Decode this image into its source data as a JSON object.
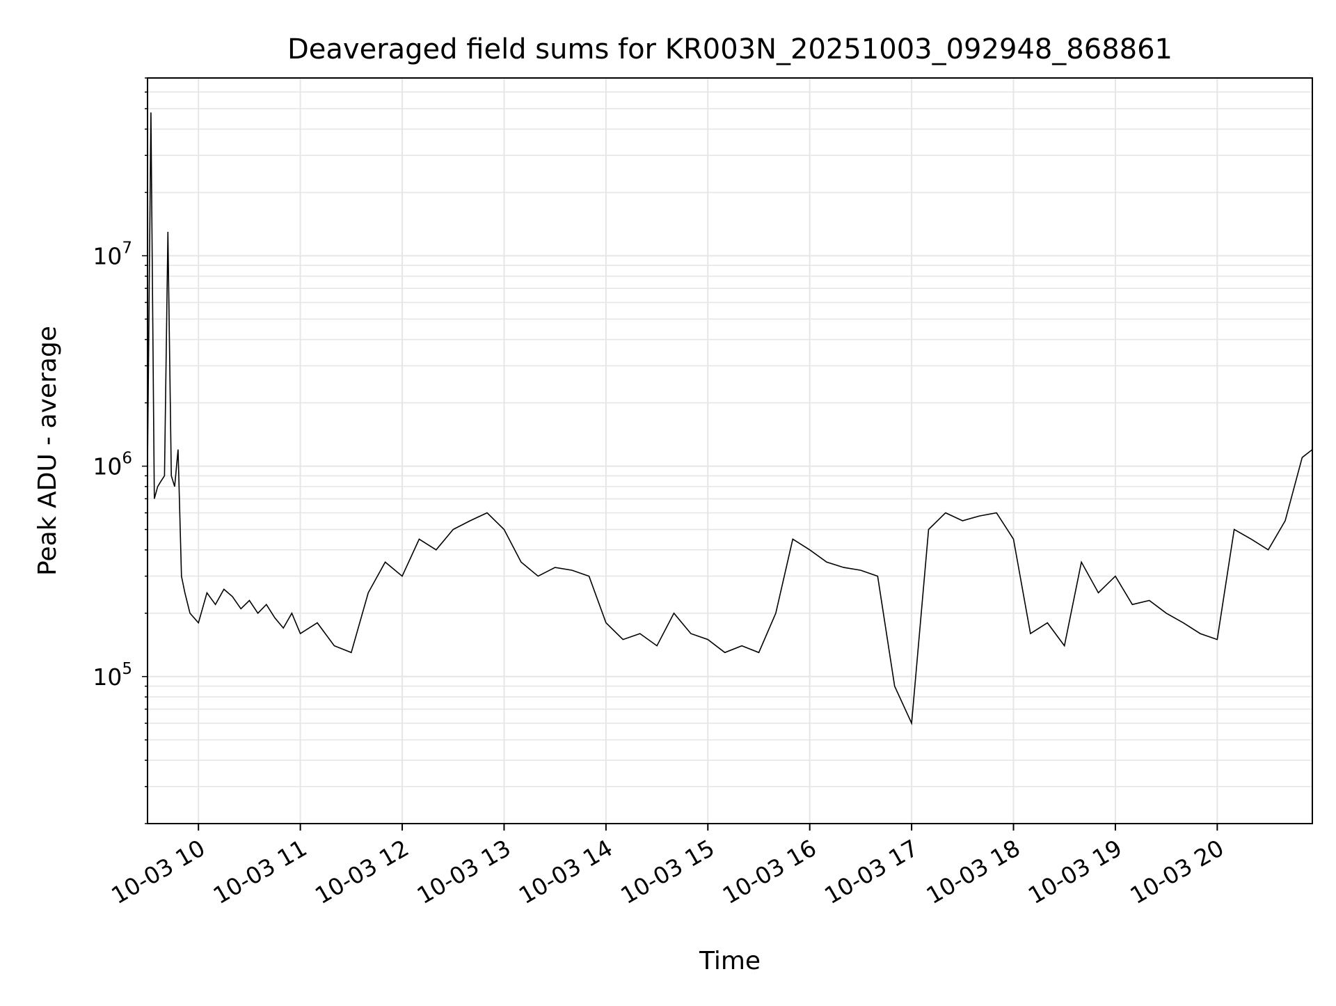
{
  "chart_data": {
    "type": "line",
    "title": "Deaveraged field sums for KR003N_20251003_092948_868861",
    "xlabel": "Time",
    "ylabel": "Peak ADU - average",
    "x_scale": "time",
    "y_scale": "log",
    "grid": true,
    "grid_minor": true,
    "line_color": "#000000",
    "grid_color": "#e6e6e6",
    "xlim": [
      "2025-10-03 09:30",
      "2025-10-03 20:56"
    ],
    "ylim": [
      20000,
      70000000
    ],
    "x_ticks": [
      {
        "label": "10-03 10",
        "value": "2025-10-03 10:00"
      },
      {
        "label": "10-03 11",
        "value": "2025-10-03 11:00"
      },
      {
        "label": "10-03 12",
        "value": "2025-10-03 12:00"
      },
      {
        "label": "10-03 13",
        "value": "2025-10-03 13:00"
      },
      {
        "label": "10-03 14",
        "value": "2025-10-03 14:00"
      },
      {
        "label": "10-03 15",
        "value": "2025-10-03 15:00"
      },
      {
        "label": "10-03 16",
        "value": "2025-10-03 16:00"
      },
      {
        "label": "10-03 17",
        "value": "2025-10-03 17:00"
      },
      {
        "label": "10-03 18",
        "value": "2025-10-03 18:00"
      },
      {
        "label": "10-03 19",
        "value": "2025-10-03 19:00"
      },
      {
        "label": "10-03 20",
        "value": "2025-10-03 20:00"
      }
    ],
    "y_ticks": [
      {
        "base": "10",
        "exp": "5",
        "value": 100000
      },
      {
        "base": "10",
        "exp": "6",
        "value": 1000000
      },
      {
        "base": "10",
        "exp": "7",
        "value": 10000000
      }
    ],
    "series": [
      {
        "x": [
          "2025-10-03 09:30",
          "2025-10-03 09:32",
          "2025-10-03 09:34",
          "2025-10-03 09:36",
          "2025-10-03 09:38",
          "2025-10-03 09:40",
          "2025-10-03 09:42",
          "2025-10-03 09:44",
          "2025-10-03 09:46",
          "2025-10-03 09:48",
          "2025-10-03 09:50",
          "2025-10-03 09:52",
          "2025-10-03 09:55",
          "2025-10-03 10:00",
          "2025-10-03 10:05",
          "2025-10-03 10:10",
          "2025-10-03 10:15",
          "2025-10-03 10:20",
          "2025-10-03 10:25",
          "2025-10-03 10:30",
          "2025-10-03 10:35",
          "2025-10-03 10:40",
          "2025-10-03 10:45",
          "2025-10-03 10:50",
          "2025-10-03 10:55",
          "2025-10-03 11:00",
          "2025-10-03 11:10",
          "2025-10-03 11:20",
          "2025-10-03 11:30",
          "2025-10-03 11:40",
          "2025-10-03 11:50",
          "2025-10-03 12:00",
          "2025-10-03 12:10",
          "2025-10-03 12:20",
          "2025-10-03 12:30",
          "2025-10-03 12:40",
          "2025-10-03 12:50",
          "2025-10-03 13:00",
          "2025-10-03 13:10",
          "2025-10-03 13:20",
          "2025-10-03 13:30",
          "2025-10-03 13:40",
          "2025-10-03 13:50",
          "2025-10-03 14:00",
          "2025-10-03 14:10",
          "2025-10-03 14:20",
          "2025-10-03 14:30",
          "2025-10-03 14:40",
          "2025-10-03 14:50",
          "2025-10-03 15:00",
          "2025-10-03 15:10",
          "2025-10-03 15:20",
          "2025-10-03 15:30",
          "2025-10-03 15:40",
          "2025-10-03 15:50",
          "2025-10-03 16:00",
          "2025-10-03 16:10",
          "2025-10-03 16:20",
          "2025-10-03 16:30",
          "2025-10-03 16:40",
          "2025-10-03 16:50",
          "2025-10-03 17:00",
          "2025-10-03 17:10",
          "2025-10-03 17:20",
          "2025-10-03 17:30",
          "2025-10-03 17:40",
          "2025-10-03 17:50",
          "2025-10-03 18:00",
          "2025-10-03 18:10",
          "2025-10-03 18:20",
          "2025-10-03 18:30",
          "2025-10-03 18:40",
          "2025-10-03 18:50",
          "2025-10-03 19:00",
          "2025-10-03 19:10",
          "2025-10-03 19:20",
          "2025-10-03 19:30",
          "2025-10-03 19:40",
          "2025-10-03 19:50",
          "2025-10-03 20:00",
          "2025-10-03 20:10",
          "2025-10-03 20:20",
          "2025-10-03 20:30",
          "2025-10-03 20:40",
          "2025-10-03 20:50",
          "2025-10-03 20:56"
        ],
        "y": [
          1000000,
          48000000,
          700000,
          800000,
          850000,
          900000,
          13000000,
          900000,
          800000,
          1200000,
          300000,
          250000,
          200000,
          180000,
          250000,
          220000,
          260000,
          240000,
          210000,
          230000,
          200000,
          220000,
          190000,
          170000,
          200000,
          160000,
          180000,
          140000,
          130000,
          250000,
          350000,
          300000,
          450000,
          400000,
          500000,
          550000,
          600000,
          500000,
          350000,
          300000,
          330000,
          320000,
          300000,
          180000,
          150000,
          160000,
          140000,
          200000,
          160000,
          150000,
          130000,
          140000,
          130000,
          200000,
          450000,
          400000,
          350000,
          330000,
          320000,
          300000,
          90000,
          60000,
          500000,
          600000,
          550000,
          580000,
          600000,
          450000,
          160000,
          180000,
          140000,
          350000,
          250000,
          300000,
          220000,
          230000,
          200000,
          180000,
          160000,
          150000,
          500000,
          450000,
          400000,
          550000,
          1100000,
          1200000
        ]
      }
    ]
  }
}
